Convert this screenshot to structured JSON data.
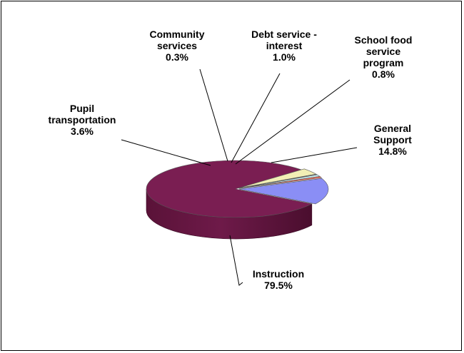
{
  "chart_data": {
    "type": "pie",
    "title": "",
    "style": "3d-exploded",
    "slices": [
      {
        "lines": [
          "General",
          "Support"
        ],
        "value_label": "14.8%",
        "value": 14.8,
        "color": "#8a8ef5"
      },
      {
        "lines": [
          "Instruction"
        ],
        "value_label": "79.5%",
        "value": 79.5,
        "color": "#7a1e52"
      },
      {
        "lines": [
          "Pupil",
          "transportation"
        ],
        "value_label": "3.6%",
        "value": 3.6,
        "color": "#f2efb5"
      },
      {
        "lines": [
          "Community",
          "services"
        ],
        "value_label": "0.3%",
        "value": 0.3,
        "color": "#e8f7ff"
      },
      {
        "lines": [
          "Debt service -",
          "interest"
        ],
        "value_label": "1.0%",
        "value": 1.0,
        "color": "#c9f0f3"
      },
      {
        "lines": [
          "School food",
          "service",
          "program"
        ],
        "value_label": "0.8%",
        "value": 0.8,
        "color": "#f26b5b"
      }
    ],
    "legend": "none",
    "grid": false
  }
}
